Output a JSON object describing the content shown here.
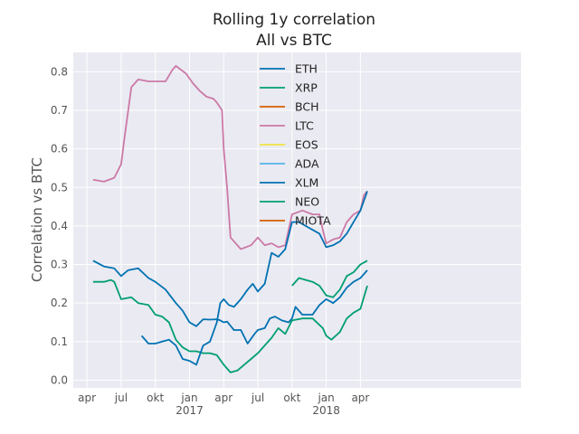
{
  "chart_data": {
    "type": "line",
    "title": "Rolling 1y correlation",
    "subtitle": "All vs BTC",
    "xlabel": "",
    "ylabel": "Correlation vs BTC",
    "ylim": [
      -0.02,
      0.85
    ],
    "xlim": [
      -0.4,
      12.7
    ],
    "y_ticks": [
      "0.0",
      "0.1",
      "0.2",
      "0.3",
      "0.4",
      "0.5",
      "0.6",
      "0.7",
      "0.8"
    ],
    "x_ticks": [
      {
        "label": "apr",
        "year": "",
        "pos": 0
      },
      {
        "label": "jul",
        "year": "",
        "pos": 1
      },
      {
        "label": "okt",
        "year": "",
        "pos": 2
      },
      {
        "label": "jan",
        "year": "2017",
        "pos": 3
      },
      {
        "label": "apr",
        "year": "",
        "pos": 4
      },
      {
        "label": "jul",
        "year": "",
        "pos": 5
      },
      {
        "label": "okt",
        "year": "",
        "pos": 6
      },
      {
        "label": "jan",
        "year": "2018",
        "pos": 7
      },
      {
        "label": "apr",
        "year": "",
        "pos": 8
      }
    ],
    "grid": true,
    "legend_position": "top-center",
    "background": "#eaeaf2",
    "series": [
      {
        "name": "ETH",
        "color": "#0072b2",
        "x": [
          0.18,
          0.5,
          0.8,
          1.0,
          1.2,
          1.5,
          1.8,
          2.0,
          2.3,
          2.6,
          2.8,
          3.0,
          3.2,
          3.4,
          3.6,
          3.8,
          3.9,
          4.0,
          4.1,
          4.3,
          4.5,
          4.7,
          4.9,
          5.0,
          5.2,
          5.35,
          5.5,
          5.7,
          5.9,
          6.0,
          6.1,
          6.3,
          6.6,
          6.8,
          7.0,
          7.2,
          7.4,
          7.6,
          7.8,
          8.0,
          8.2
        ],
        "y": [
          0.31,
          0.295,
          0.29,
          0.27,
          0.285,
          0.29,
          0.265,
          0.255,
          0.235,
          0.2,
          0.18,
          0.15,
          0.14,
          0.158,
          0.157,
          0.158,
          0.155,
          0.15,
          0.152,
          0.13,
          0.13,
          0.095,
          0.12,
          0.13,
          0.135,
          0.16,
          0.165,
          0.155,
          0.15,
          0.16,
          0.19,
          0.17,
          0.17,
          0.195,
          0.21,
          0.2,
          0.215,
          0.24,
          0.255,
          0.265,
          0.285
        ]
      },
      {
        "name": "XRP",
        "color": "#009e73",
        "x": [
          0.18,
          0.5,
          0.7,
          0.8,
          1.0,
          1.3,
          1.5,
          1.8,
          2.0,
          2.2,
          2.4,
          2.6,
          2.8,
          3.0,
          3.2,
          3.4,
          3.6,
          3.8,
          4.0,
          4.2,
          4.4,
          4.6,
          4.8,
          5.0,
          5.2,
          5.4,
          5.6,
          5.8,
          6.0,
          6.3,
          6.6,
          6.9,
          7.0,
          7.15,
          7.4,
          7.6,
          7.8,
          8.0,
          8.2
        ],
        "y": [
          0.255,
          0.255,
          0.26,
          0.255,
          0.21,
          0.215,
          0.2,
          0.195,
          0.17,
          0.165,
          0.15,
          0.105,
          0.085,
          0.075,
          0.075,
          0.07,
          0.07,
          0.065,
          0.04,
          0.02,
          0.025,
          0.04,
          0.055,
          0.07,
          0.09,
          0.11,
          0.135,
          0.12,
          0.155,
          0.16,
          0.16,
          0.135,
          0.115,
          0.105,
          0.125,
          0.16,
          0.175,
          0.185,
          0.245
        ]
      },
      {
        "name": "BCH",
        "color": "#d55e00",
        "x": [],
        "y": []
      },
      {
        "name": "LTC",
        "color": "#cc79a7",
        "x": [
          0.18,
          0.5,
          0.8,
          1.0,
          1.1,
          1.3,
          1.5,
          1.8,
          2.0,
          2.3,
          2.5,
          2.6,
          2.9,
          3.1,
          3.3,
          3.5,
          3.7,
          3.8,
          3.95,
          4.0,
          4.1,
          4.2,
          4.5,
          4.8,
          5.0,
          5.2,
          5.4,
          5.6,
          5.8,
          6.0,
          6.3,
          6.6,
          6.8,
          6.9,
          7.0,
          7.2,
          7.4,
          7.6,
          7.8,
          8.0,
          8.1,
          8.2
        ],
        "y": [
          0.52,
          0.515,
          0.525,
          0.56,
          0.63,
          0.76,
          0.78,
          0.775,
          0.775,
          0.775,
          0.805,
          0.815,
          0.795,
          0.77,
          0.75,
          0.735,
          0.73,
          0.72,
          0.7,
          0.6,
          0.5,
          0.37,
          0.34,
          0.35,
          0.37,
          0.35,
          0.355,
          0.345,
          0.35,
          0.43,
          0.44,
          0.43,
          0.43,
          0.39,
          0.355,
          0.365,
          0.37,
          0.41,
          0.43,
          0.44,
          0.48,
          0.49
        ]
      },
      {
        "name": "EOS",
        "color": "#f0e442",
        "x": [],
        "y": []
      },
      {
        "name": "ADA",
        "color": "#56b4e9",
        "x": [],
        "y": []
      },
      {
        "name": "XLM",
        "color": "#0072b2",
        "x": [
          1.6,
          1.8,
          2.0,
          2.2,
          2.4,
          2.6,
          2.8,
          3.0,
          3.2,
          3.4,
          3.6,
          3.8,
          3.9,
          4.0,
          4.15,
          4.3,
          4.5,
          4.7,
          4.85,
          5.0,
          5.2,
          5.3,
          5.4,
          5.6,
          5.8,
          6.0,
          6.2,
          6.4,
          6.6,
          6.8,
          7.0,
          7.2,
          7.4,
          7.6,
          7.8,
          8.0,
          8.2
        ],
        "y": [
          0.115,
          0.095,
          0.095,
          0.1,
          0.105,
          0.09,
          0.055,
          0.05,
          0.04,
          0.09,
          0.1,
          0.15,
          0.2,
          0.21,
          0.195,
          0.19,
          0.21,
          0.235,
          0.25,
          0.23,
          0.25,
          0.29,
          0.33,
          0.32,
          0.34,
          0.41,
          0.41,
          0.4,
          0.39,
          0.38,
          0.345,
          0.35,
          0.36,
          0.38,
          0.41,
          0.44,
          0.49
        ]
      },
      {
        "name": "NEO",
        "color": "#009e73",
        "x": [
          6.0,
          6.2,
          6.4,
          6.6,
          6.8,
          7.0,
          7.2,
          7.4,
          7.6,
          7.8,
          8.0,
          8.2
        ],
        "y": [
          0.245,
          0.265,
          0.26,
          0.255,
          0.245,
          0.22,
          0.215,
          0.235,
          0.27,
          0.28,
          0.3,
          0.31
        ]
      },
      {
        "name": "MIOTA",
        "color": "#d55e00",
        "x": [],
        "y": []
      }
    ]
  }
}
